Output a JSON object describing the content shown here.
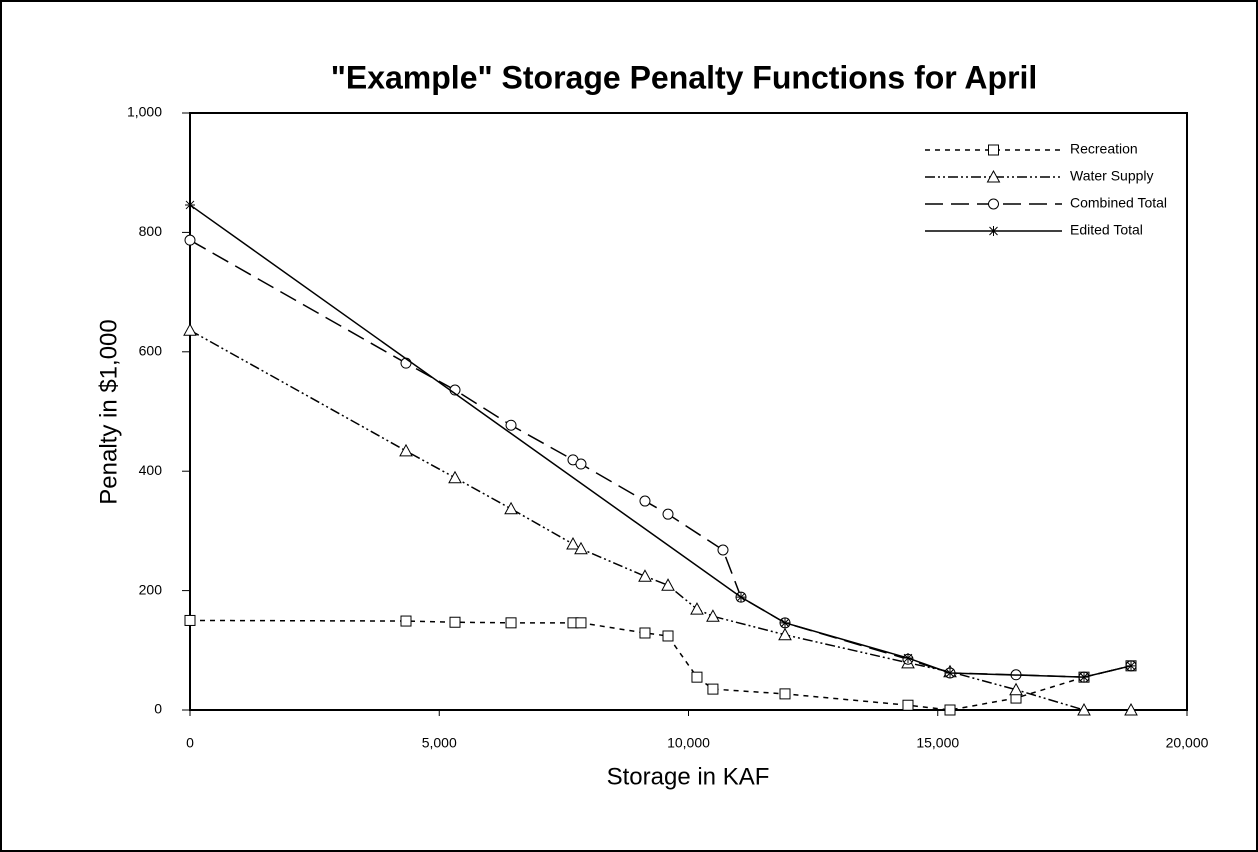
{
  "chart_data": {
    "type": "line",
    "title": "\"Example\" Storage Penalty Functions for April",
    "x_label": "Storage in KAF",
    "y_label": "Penalty in $1,000",
    "xlim": [
      0,
      20000
    ],
    "ylim": [
      0,
      1000
    ],
    "xticks": [
      0,
      {
        "value": 5000,
        "label": "5,000"
      },
      {
        "value": 10000,
        "label": "10,000"
      },
      {
        "value": 15000,
        "label": "15,000"
      },
      {
        "value": 20000,
        "label": "20,000"
      }
    ],
    "yticks": [
      0,
      200,
      400,
      600,
      800,
      {
        "value": 1000,
        "label": "1,000"
      }
    ],
    "legend": "top-right",
    "series": [
      {
        "name": "Recreation",
        "color": "#000000",
        "marker": "square",
        "dash": "5,5",
        "x": [
          0,
          4333,
          5316,
          6440,
          7683,
          7843,
          9127,
          9589,
          10170,
          10490,
          11936,
          14403,
          15246,
          16570,
          17934,
          18877
        ],
        "values": [
          150,
          149,
          147,
          146,
          146,
          146,
          129,
          124,
          55,
          35,
          27,
          8,
          0,
          20,
          55,
          74
        ]
      },
      {
        "name": "Water Supply",
        "color": "#000000",
        "marker": "triangle",
        "dash": "10,3,2,3,2,3",
        "x": [
          0,
          4333,
          5316,
          6440,
          7683,
          7843,
          9127,
          9589,
          10170,
          10490,
          11936,
          14403,
          15246,
          16570,
          17934,
          18877
        ],
        "values": [
          636,
          434,
          389,
          337,
          278,
          270,
          224,
          209,
          169,
          157,
          126,
          79,
          64,
          34,
          0,
          0
        ]
      },
      {
        "name": "Combined Total",
        "color": "#000000",
        "marker": "circle",
        "dash": "18,8",
        "x": [
          0,
          4333,
          5316,
          6440,
          7683,
          7843,
          9127,
          9589,
          10692,
          11053,
          11936,
          14403,
          15246,
          16570,
          17934,
          18877
        ],
        "values": [
          787,
          581,
          536,
          477,
          419,
          412,
          350,
          328,
          268,
          189,
          146,
          85,
          62,
          59,
          55,
          74
        ]
      },
      {
        "name": "Edited Total",
        "color": "#000000",
        "marker": "star",
        "dash": "none",
        "x": [
          0,
          11053,
          11936,
          14403,
          15246,
          17934,
          18877
        ],
        "values": [
          846,
          189,
          146,
          87,
          62,
          55,
          74
        ]
      }
    ]
  }
}
